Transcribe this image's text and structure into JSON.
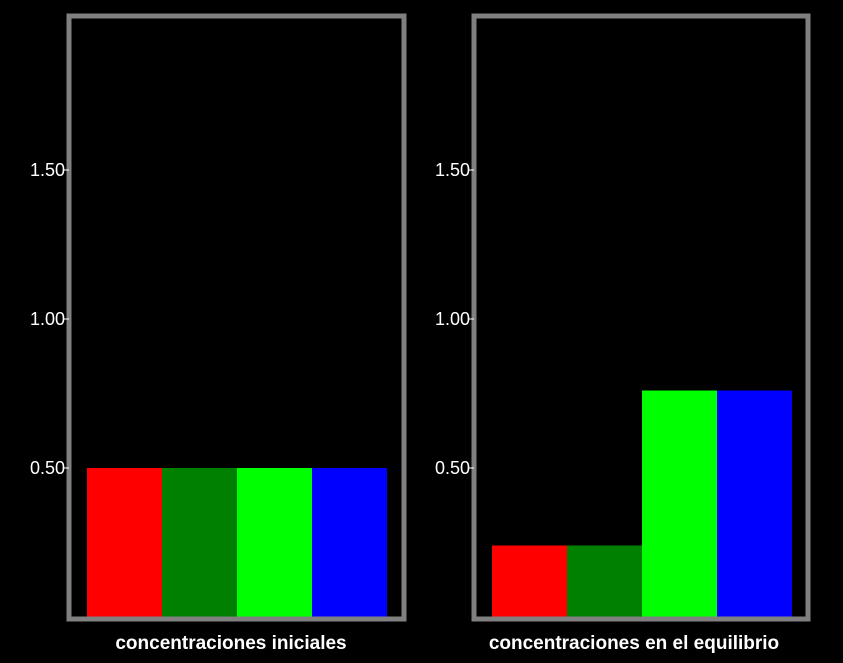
{
  "chart_data": [
    {
      "type": "bar",
      "xlabel": "concentraciones iniciales",
      "ylim": [
        0,
        2.0
      ],
      "yticks": [
        0.5,
        1.0,
        1.5
      ],
      "yticklabels": [
        "0.50",
        "1.00",
        "1.50"
      ],
      "values": [
        0.5,
        0.5,
        0.5,
        0.5
      ],
      "colors": [
        "#ff0000",
        "#008000",
        "#00ff00",
        "#0000ff"
      ]
    },
    {
      "type": "bar",
      "xlabel": "concentraciones en el equilibrio",
      "ylim": [
        0,
        2.0
      ],
      "yticks": [
        0.5,
        1.0,
        1.5
      ],
      "yticklabels": [
        "0.50",
        "1.00",
        "1.50"
      ],
      "values": [
        0.24,
        0.24,
        0.76,
        0.76
      ],
      "colors": [
        "#ff0000",
        "#008000",
        "#00ff00",
        "#0000ff"
      ]
    }
  ],
  "style": {
    "background": "#000000",
    "frame_color": "#808080",
    "text_color": "#ffffff"
  }
}
